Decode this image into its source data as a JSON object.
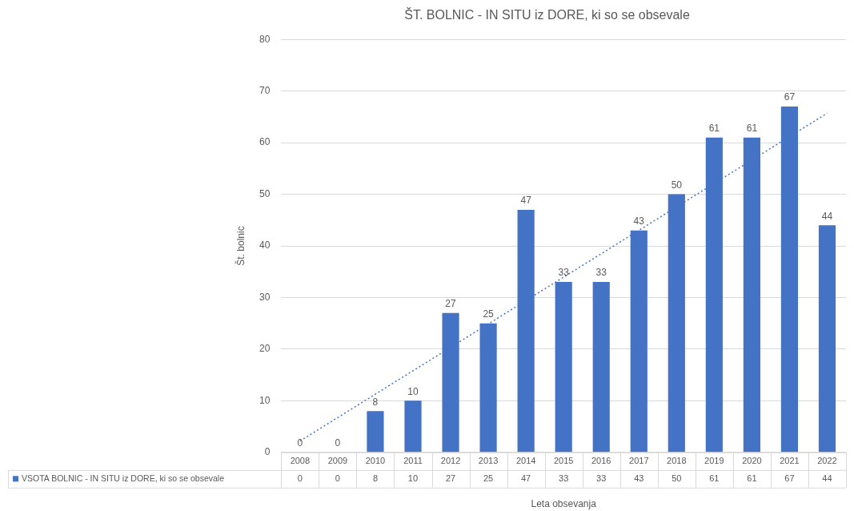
{
  "chart_data": {
    "type": "bar",
    "title": "ŠT. BOLNIC - IN SITU iz DORE, ki so se obsevale",
    "xlabel": "Leta obsevanja",
    "ylabel": "Št. bolnic",
    "categories": [
      "2008",
      "2009",
      "2010",
      "2011",
      "2012",
      "2013",
      "2014",
      "2015",
      "2016",
      "2017",
      "2018",
      "2019",
      "2020",
      "2021",
      "2022"
    ],
    "series": [
      {
        "name": "VSOTA BOLNIC - IN SITU iz DORE, ki so se obsevale",
        "color": "#4472c4",
        "values": [
          0,
          0,
          8,
          10,
          27,
          25,
          47,
          33,
          33,
          43,
          50,
          61,
          61,
          67,
          44
        ],
        "value_labels": [
          "0",
          "0",
          "8",
          "10",
          "27",
          "25",
          "47",
          "33",
          "33",
          "43",
          "50",
          "61",
          "61",
          "67",
          "44"
        ]
      },
      {
        "type": "line",
        "values": [
          2.2,
          null,
          null,
          null,
          null,
          null,
          null,
          null,
          null,
          null,
          null,
          null,
          null,
          null,
          65.7
        ],
        "color": "#4472c4",
        "line_style": "dotted",
        "marker": "none"
      }
    ],
    "ylim": [
      0,
      80
    ],
    "yticks": [
      0,
      10,
      20,
      30,
      40,
      50,
      60,
      70,
      80
    ],
    "grid": "y",
    "legend": "bottom"
  }
}
